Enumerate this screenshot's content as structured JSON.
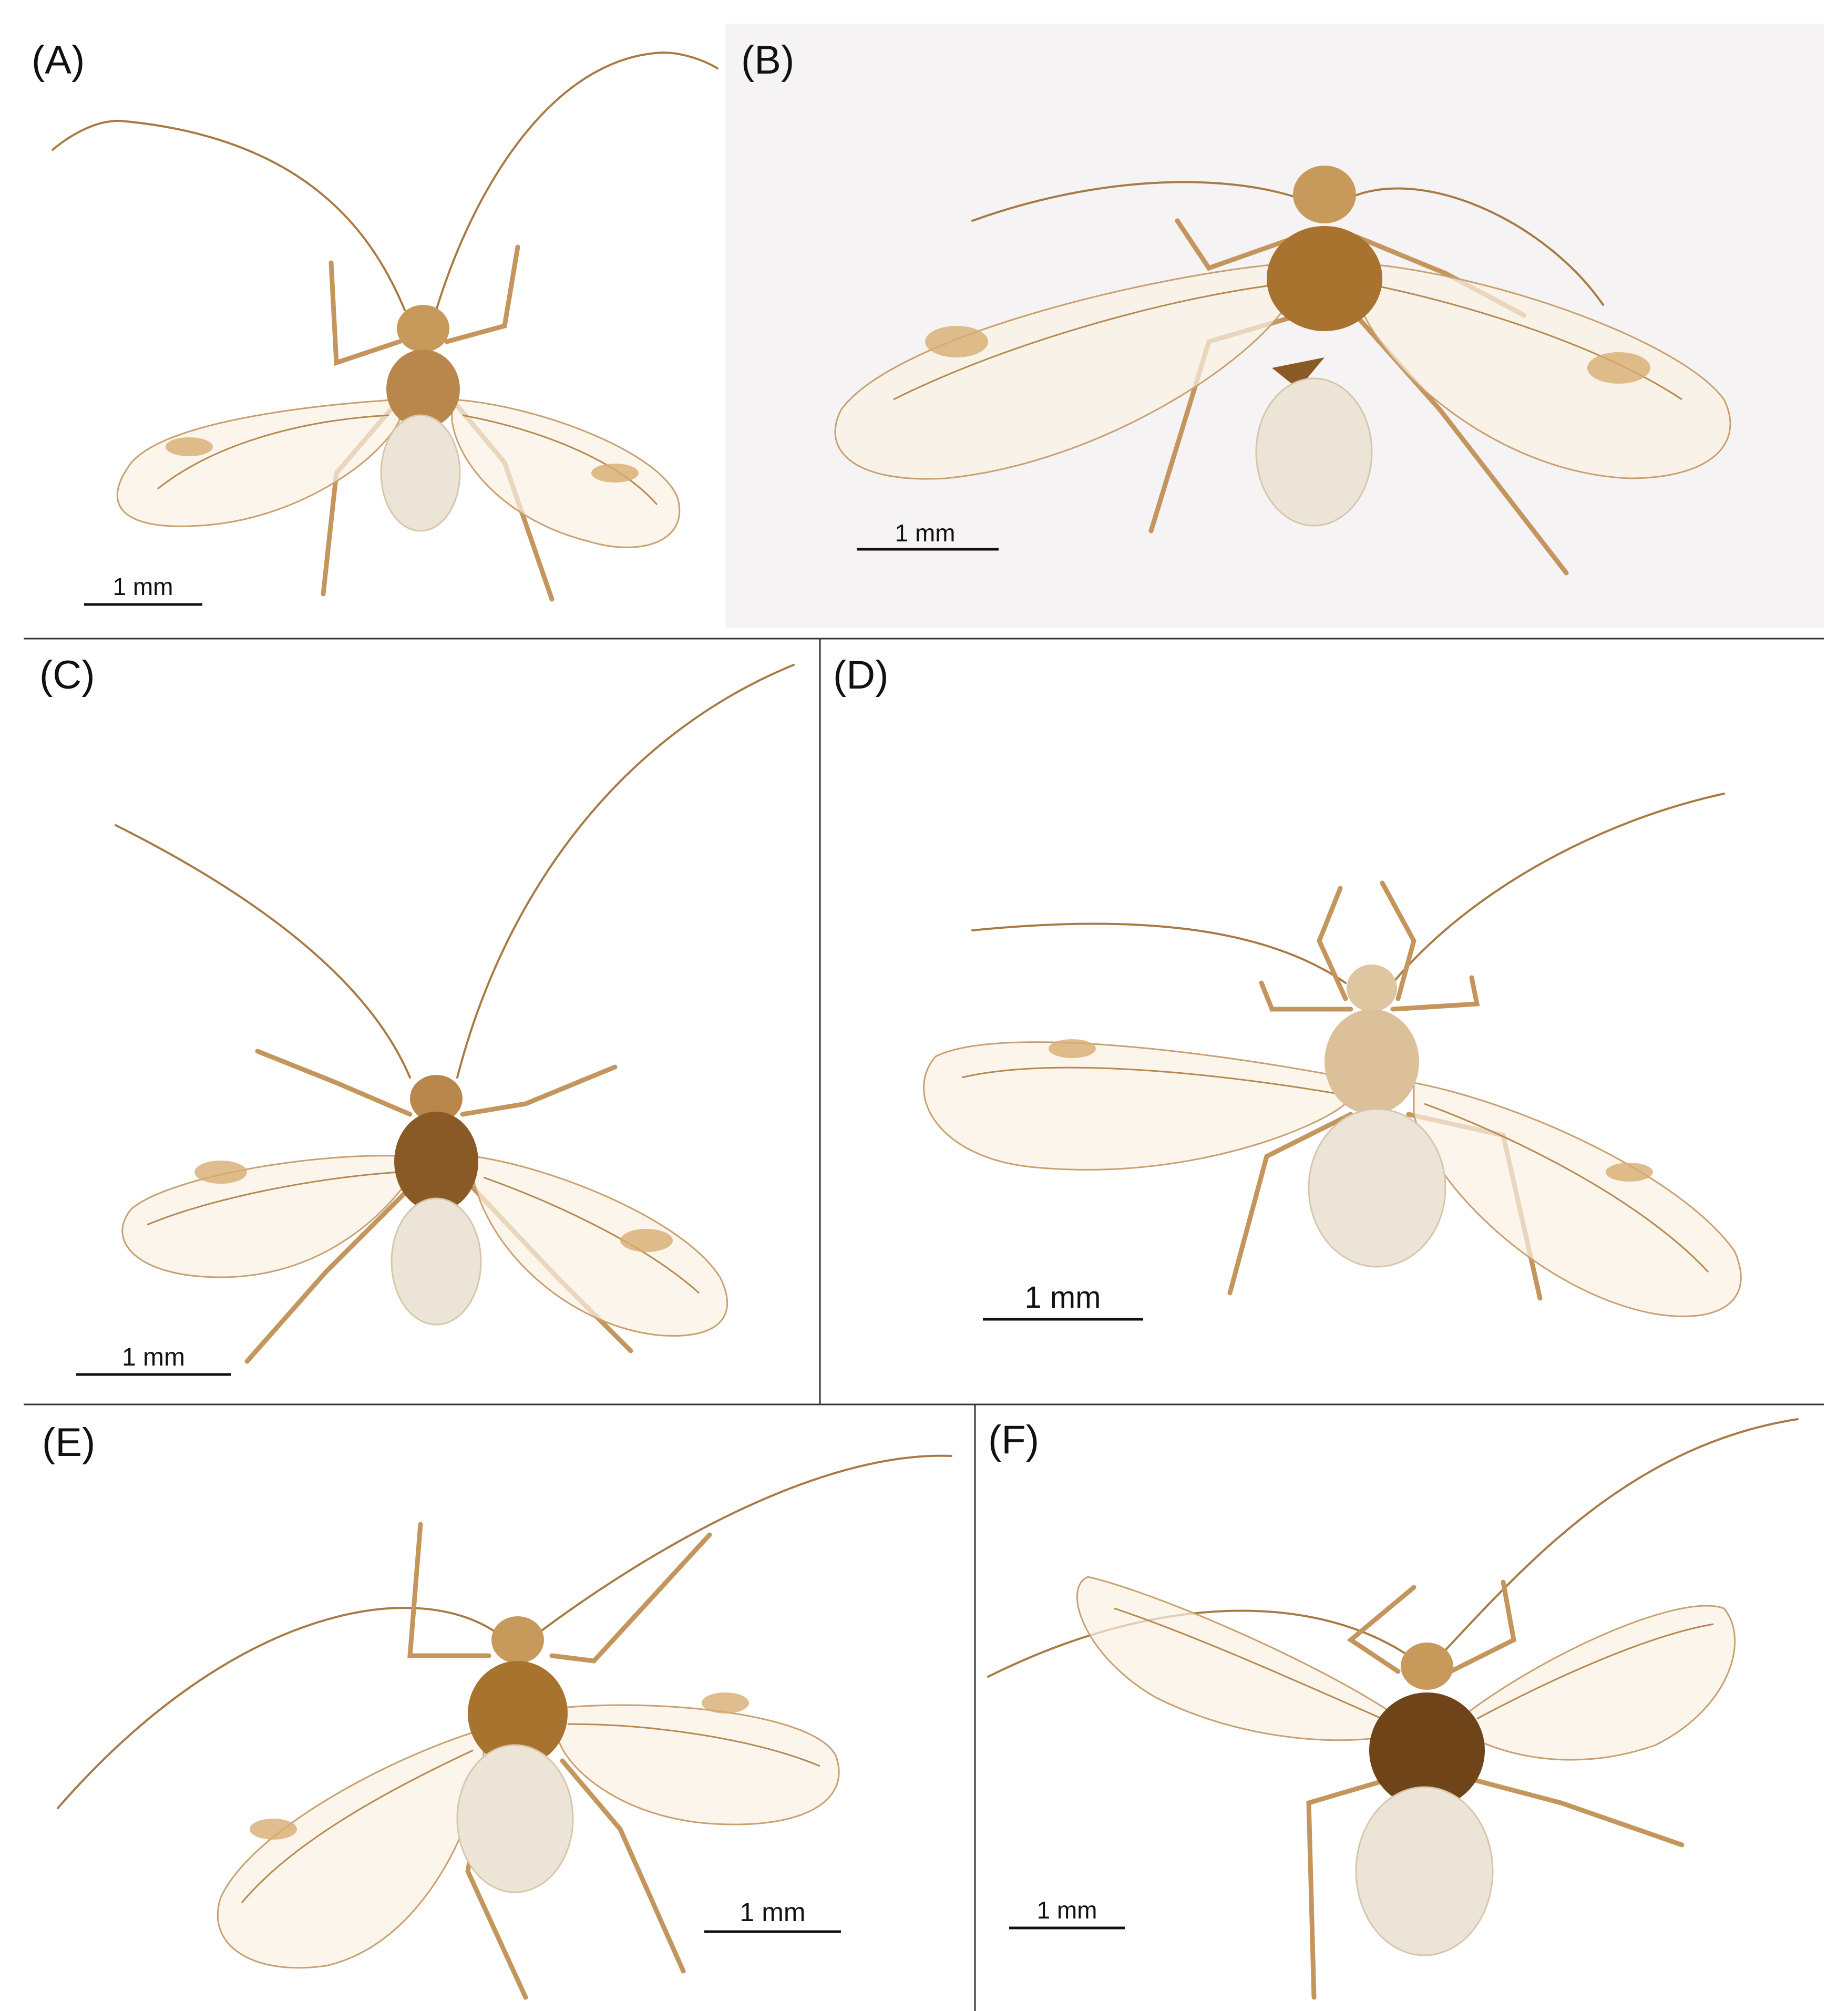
{
  "figure": {
    "panels": [
      {
        "label": "(A)",
        "scale_bar": "1 mm"
      },
      {
        "label": "(B)",
        "scale_bar": "1 mm"
      },
      {
        "label": "(C)",
        "scale_bar": "1 mm"
      },
      {
        "label": "(D)",
        "scale_bar": "1 mm"
      },
      {
        "label": "(E)",
        "scale_bar": "1 mm"
      },
      {
        "label": "(F)",
        "scale_bar": "1 mm"
      }
    ]
  },
  "colors": {
    "background": "#ffffff",
    "panel_b_background": "#f5f3f4",
    "head": "#c79a5c",
    "thorax_dark": "#8a5a26",
    "abdomen": "#ece4d6"
  }
}
